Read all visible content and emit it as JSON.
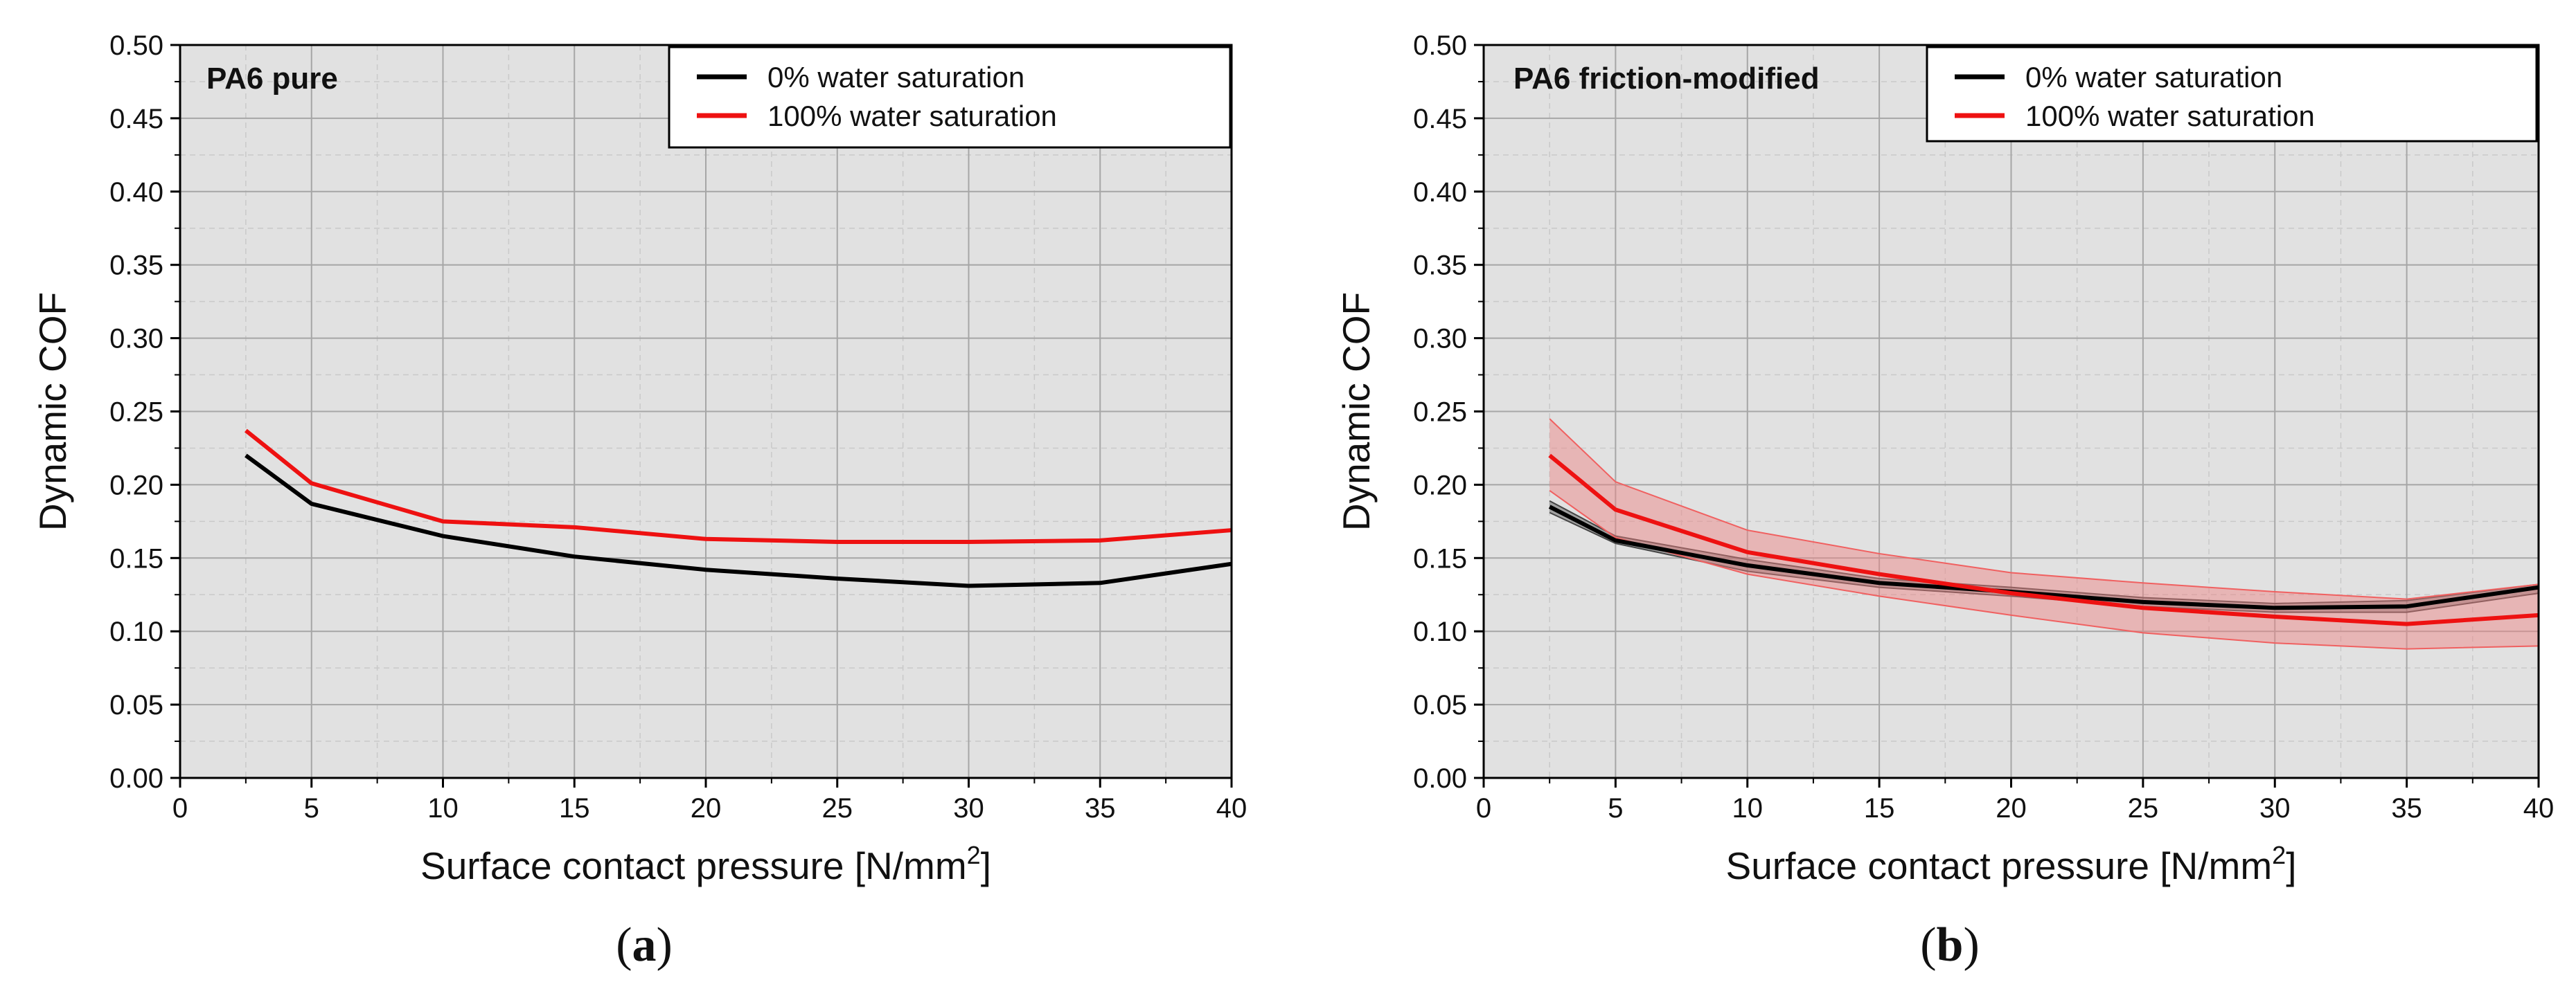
{
  "figure_colors": {
    "plot_background": "#e1e1e1",
    "grid_major": "#a6a6a6",
    "grid_minor": "#c9c9c9",
    "series_dry": "#000000",
    "series_wet": "#ee1111",
    "band_wet": "#f08080"
  },
  "chart_data": [
    {
      "type": "line",
      "panel_label": "a",
      "title": "PA6 pure",
      "xlabel": "Surface contact pressure [N/mm",
      "xlabel_superscript": "2",
      "xlabel_suffix": "]",
      "ylabel": "Dynamic COF",
      "xlim": [
        0,
        40
      ],
      "ylim": [
        0,
        0.5
      ],
      "x_ticks": [
        0,
        5,
        10,
        15,
        20,
        25,
        30,
        35,
        40
      ],
      "y_ticks": [
        "0.00",
        "0.05",
        "0.10",
        "0.15",
        "0.20",
        "0.25",
        "0.30",
        "0.35",
        "0.40",
        "0.45",
        "0.50"
      ],
      "grid": true,
      "legend_position": "top-right",
      "series": [
        {
          "name": "0% water saturation",
          "color": "#000000",
          "x": [
            2.5,
            5,
            10,
            15,
            20,
            25,
            30,
            35,
            40
          ],
          "y": [
            0.22,
            0.187,
            0.165,
            0.151,
            0.142,
            0.136,
            0.131,
            0.133,
            0.146
          ]
        },
        {
          "name": "100% water saturation",
          "color": "#ee1111",
          "x": [
            2.5,
            5,
            10,
            15,
            20,
            25,
            30,
            35,
            40
          ],
          "y": [
            0.237,
            0.201,
            0.175,
            0.171,
            0.163,
            0.161,
            0.161,
            0.162,
            0.169
          ]
        }
      ]
    },
    {
      "type": "line",
      "panel_label": "b",
      "title": "PA6 friction-modified",
      "xlabel": "Surface contact pressure [N/mm",
      "xlabel_superscript": "2",
      "xlabel_suffix": "]",
      "ylabel": "Dynamic COF",
      "xlim": [
        0,
        40
      ],
      "ylim": [
        0,
        0.5
      ],
      "x_ticks": [
        0,
        5,
        10,
        15,
        20,
        25,
        30,
        35,
        40
      ],
      "y_ticks": [
        "0.00",
        "0.05",
        "0.10",
        "0.15",
        "0.20",
        "0.25",
        "0.30",
        "0.35",
        "0.40",
        "0.45",
        "0.50"
      ],
      "grid": true,
      "legend_position": "top-right",
      "series": [
        {
          "name": "0% water saturation",
          "color": "#000000",
          "x": [
            2.5,
            5,
            10,
            15,
            20,
            25,
            30,
            35,
            40
          ],
          "y": [
            0.185,
            0.162,
            0.145,
            0.133,
            0.127,
            0.12,
            0.116,
            0.117,
            0.13
          ],
          "lower": [
            0.181,
            0.16,
            0.141,
            0.13,
            0.124,
            0.117,
            0.113,
            0.113,
            0.126
          ],
          "upper": [
            0.189,
            0.165,
            0.149,
            0.136,
            0.13,
            0.123,
            0.119,
            0.121,
            0.132
          ]
        },
        {
          "name": "100% water saturation",
          "color": "#ee1111",
          "x": [
            2.5,
            5,
            10,
            15,
            20,
            25,
            30,
            35,
            40
          ],
          "y": [
            0.22,
            0.183,
            0.154,
            0.139,
            0.126,
            0.116,
            0.11,
            0.105,
            0.111
          ],
          "lower": [
            0.196,
            0.164,
            0.139,
            0.124,
            0.111,
            0.099,
            0.092,
            0.088,
            0.09
          ],
          "upper": [
            0.245,
            0.202,
            0.169,
            0.153,
            0.14,
            0.133,
            0.127,
            0.122,
            0.132
          ]
        }
      ]
    }
  ]
}
